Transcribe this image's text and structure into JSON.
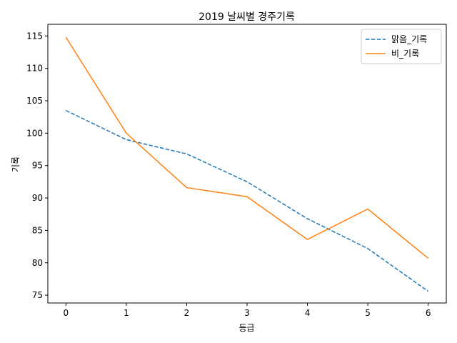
{
  "chart_data": {
    "type": "line",
    "title": "2019 날씨별 경주기록",
    "xlabel": "등급",
    "ylabel": "기록",
    "x": [
      0,
      1,
      2,
      3,
      4,
      5,
      6
    ],
    "x_ticks": [
      "0",
      "1",
      "2",
      "3",
      "4",
      "5",
      "6"
    ],
    "y_ticks": [
      "75",
      "80",
      "85",
      "90",
      "95",
      "100",
      "105",
      "110",
      "115"
    ],
    "xlim": [
      -0.3,
      6.3
    ],
    "ylim": [
      73.8,
      116.8
    ],
    "grid": false,
    "legend_position": "top-right",
    "series": [
      {
        "name": "맑음_기록",
        "values": [
          103.5,
          99.0,
          96.8,
          92.5,
          86.8,
          82.2,
          75.6
        ],
        "color": "#1f77b4",
        "style": "dashed"
      },
      {
        "name": "비_기록",
        "values": [
          114.8,
          100.0,
          91.6,
          90.2,
          83.6,
          88.3,
          80.7
        ],
        "color": "#ff7f0e",
        "style": "solid"
      }
    ]
  }
}
